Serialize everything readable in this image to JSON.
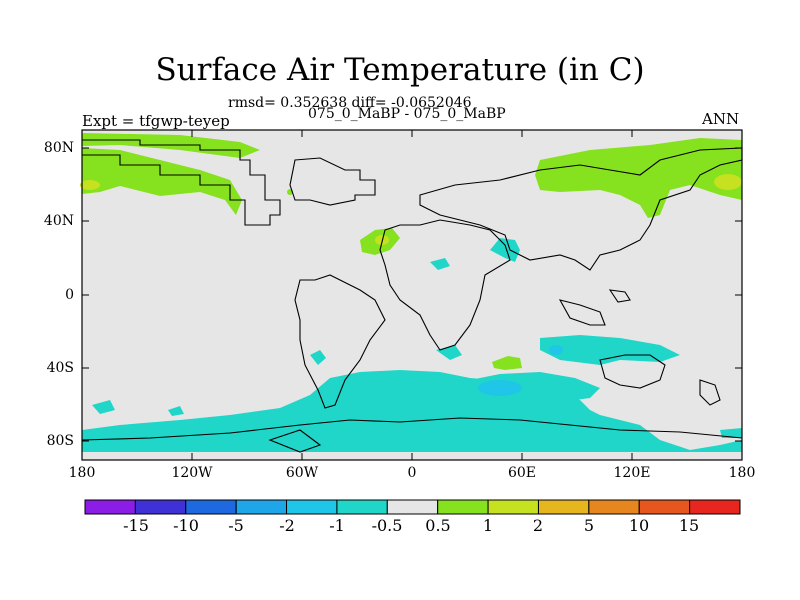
{
  "title": "Surface Air Temperature (in C)",
  "stats_line": "rmsd= 0.352638 diff= -0.0652046",
  "subtitle": "075_0_MaBP - 075_0_MaBP",
  "left_label": "Expt = tfgwp-teyep",
  "right_label": "ANN",
  "y_ticks": [
    "80N",
    "40N",
    "0",
    "40S",
    "80S"
  ],
  "x_ticks": [
    "180",
    "120W",
    "60W",
    "0",
    "60E",
    "120E",
    "180"
  ],
  "colorbar": {
    "labels": [
      "-15",
      "-10",
      "-5",
      "-2",
      "-1",
      "-0.5",
      "0.5",
      "1",
      "2",
      "5",
      "10",
      "15"
    ],
    "colors": [
      "#8b1de6",
      "#3f31d6",
      "#1f69e0",
      "#1fa6e8",
      "#1fc6e8",
      "#1fd6c8",
      "#e6e6e6",
      "#86e11f",
      "#c6e11f",
      "#e6b61f",
      "#e6861f",
      "#e6561f",
      "#e6261f"
    ]
  },
  "colors": {
    "land_fill": "#e6e6e6",
    "positive_1": "#86e11f",
    "positive_2": "#c6e11f",
    "negative_1": "#1fd6c8",
    "negative_2": "#1fc6e8",
    "coastline": "#000000"
  }
}
